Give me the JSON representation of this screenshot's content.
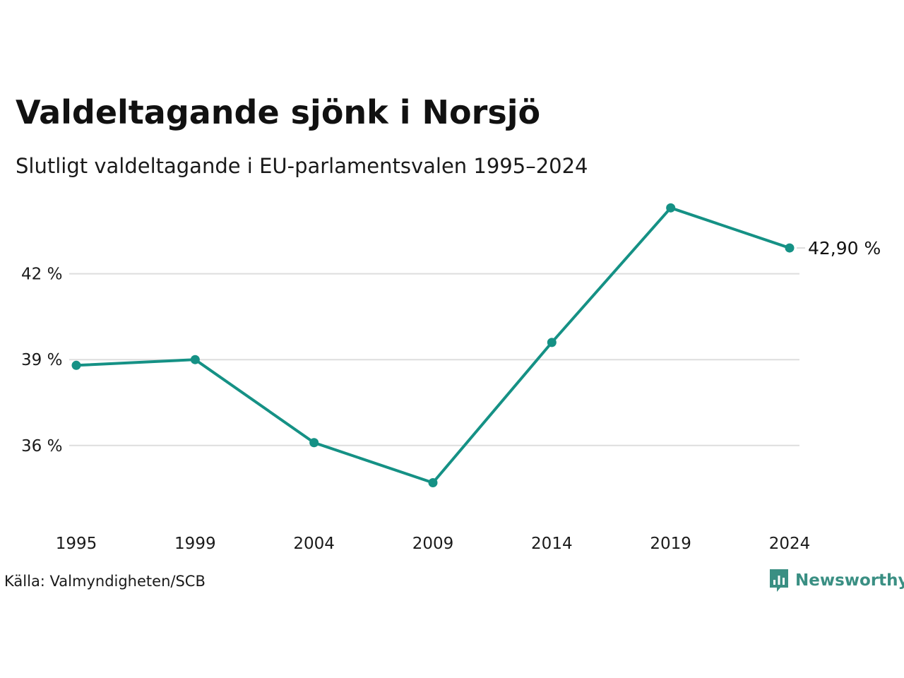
{
  "header": {
    "title": "Valdeltagande sjönk i Norsjö",
    "subtitle": "Slutligt valdeltagande i EU-parlamentsvalen 1995–2024"
  },
  "footer": {
    "source": "Källa: Valmyndigheten/SCB",
    "brand": "Newsworthy"
  },
  "colors": {
    "line": "#159185",
    "grid": "#dddddd",
    "brand": "#3a8f83"
  },
  "chart_data": {
    "type": "line",
    "title": "Valdeltagande sjönk i Norsjö",
    "subtitle": "Slutligt valdeltagande i EU-parlamentsvalen 1995–2024",
    "x": [
      "1995",
      "1999",
      "2004",
      "2009",
      "2014",
      "2019",
      "2024"
    ],
    "series": [
      {
        "values": [
          38.8,
          39.0,
          36.1,
          34.7,
          39.6,
          44.3,
          42.9
        ]
      }
    ],
    "ylim": [
      33.8,
      44.9
    ],
    "y_ticks": [
      36,
      39,
      42
    ],
    "y_tick_labels": [
      "36 %",
      "39 %",
      "42 %"
    ],
    "last_value_label": "42,90 %",
    "grid": "horizontal",
    "legend": "none"
  }
}
